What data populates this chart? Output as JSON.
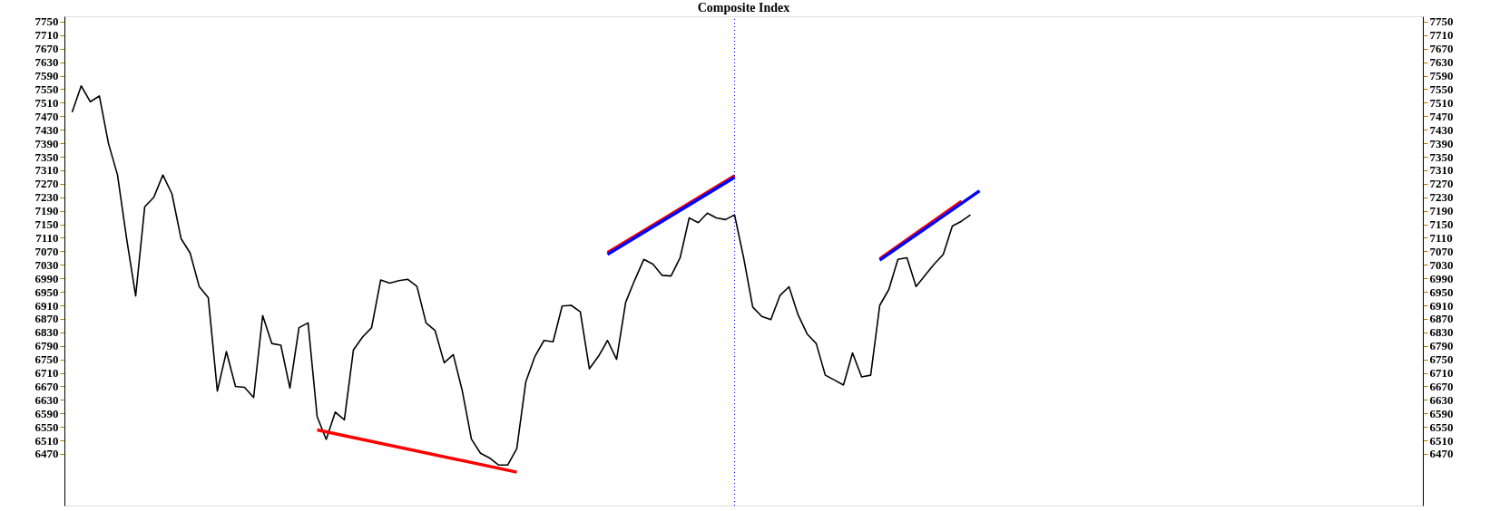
{
  "chart_data": {
    "type": "line",
    "title": "Composite Index",
    "categories": [
      null,
      null,
      null,
      null,
      null,
      null,
      null,
      null,
      null,
      null,
      null,
      null,
      null,
      null,
      null,
      null,
      null,
      null,
      null,
      null,
      null,
      null,
      null,
      null,
      null,
      null,
      null,
      null,
      null,
      null,
      null,
      null,
      null,
      null,
      null,
      null,
      null,
      null,
      null,
      null,
      null,
      null,
      null,
      null,
      null,
      null,
      null,
      null,
      null,
      null,
      null,
      null,
      null,
      null,
      null,
      null,
      null,
      null,
      null,
      null,
      null,
      null,
      null,
      null,
      null,
      null,
      null,
      null,
      null,
      null,
      null,
      null,
      null,
      null,
      null,
      null,
      null,
      null,
      null,
      null,
      null,
      null,
      null,
      null,
      null,
      null,
      null,
      null,
      null,
      null,
      null,
      null,
      null,
      null,
      null,
      null,
      null,
      null,
      null,
      null,
      null,
      null,
      null,
      null,
      null,
      null,
      null,
      null,
      null,
      null,
      null,
      null,
      null,
      null,
      null,
      null,
      null,
      null,
      null,
      null,
      null,
      null,
      null,
      null,
      null,
      null,
      null,
      null,
      null,
      null,
      null,
      null,
      null,
      null,
      null,
      null,
      null,
      null,
      null,
      null,
      null,
      null,
      null,
      null,
      null,
      null,
      null,
      null,
      null
    ],
    "series": [
      {
        "color": "#000000",
        "values": [
          7482,
          7560,
          7513,
          7530,
          7390,
          7296,
          7108,
          6938,
          7202,
          7230,
          7296,
          7240,
          7108,
          7065,
          6966,
          6933,
          6656,
          6773,
          6670,
          6667,
          6637,
          6880,
          6797,
          6792,
          6665,
          6844,
          6858,
          6580,
          6513,
          6594,
          6571,
          6778,
          6816,
          6844,
          6985,
          6976,
          6983,
          6987,
          6966,
          6858,
          6835,
          6740,
          6764,
          6656,
          6514,
          6472,
          6458,
          6437,
          6437,
          6486,
          6684,
          6759,
          6806,
          6802,
          6908,
          6910,
          6891,
          6722,
          6759,
          6806,
          6750,
          6919,
          6985,
          7046,
          7032,
          6999,
          6997,
          7051,
          7169,
          7155,
          7183,
          7169,
          7164,
          7178,
          7051,
          6905,
          6877,
          6868,
          6939,
          6965,
          6882,
          6825,
          6797,
          6703,
          6689,
          6674,
          6769,
          6698,
          6703,
          6910,
          6957,
          7046,
          7051,
          6966,
          6999,
          7032,
          7061,
          7145,
          7159,
          7178,
          null,
          null,
          null,
          null,
          null,
          null,
          null,
          null,
          null,
          null,
          null,
          null,
          null,
          null,
          null,
          null,
          null,
          null,
          null,
          null,
          null,
          null,
          null,
          null,
          null,
          null,
          null,
          null,
          null,
          null,
          null,
          null,
          null,
          null,
          null,
          null,
          null,
          null,
          null,
          null,
          null,
          null,
          null,
          null,
          null,
          null,
          null,
          null,
          null
        ]
      },
      {
        "color": "#ff0000",
        "values": [
          null,
          null,
          null,
          null,
          null,
          null,
          null,
          null,
          null,
          null,
          null,
          null,
          null,
          null,
          null,
          null,
          null,
          null,
          null,
          null,
          null,
          null,
          null,
          null,
          null,
          null,
          null,
          6541,
          null,
          null,
          null,
          null,
          null,
          null,
          null,
          null,
          null,
          null,
          null,
          null,
          null,
          null,
          null,
          null,
          null,
          null,
          null,
          null,
          null,
          6416,
          null,
          null,
          null,
          null,
          null,
          null,
          null,
          null,
          null,
          null,
          null,
          null,
          null,
          null,
          null,
          null,
          null,
          null,
          null,
          null,
          null,
          null,
          null,
          null,
          null,
          null,
          null,
          null,
          null,
          null,
          null,
          null,
          null,
          null,
          null,
          null,
          null,
          null,
          null,
          null,
          null,
          null,
          null,
          null,
          null,
          null,
          null,
          null,
          null,
          null,
          null,
          null,
          null,
          null,
          null,
          null,
          null,
          null,
          null,
          null,
          null,
          null,
          null,
          null,
          null,
          null,
          null,
          null,
          null,
          null,
          null,
          null,
          null,
          null,
          null,
          null,
          null,
          null,
          null,
          null,
          null,
          null,
          null,
          null,
          null,
          null,
          null,
          null,
          null,
          null,
          null,
          null,
          null,
          null,
          null,
          null,
          null,
          null,
          null
        ]
      },
      {
        "color": "#ff0000",
        "values": [
          null,
          null,
          null,
          null,
          null,
          null,
          null,
          null,
          null,
          null,
          null,
          null,
          null,
          null,
          null,
          null,
          null,
          null,
          null,
          null,
          null,
          null,
          null,
          null,
          null,
          null,
          null,
          null,
          null,
          null,
          null,
          null,
          null,
          null,
          null,
          null,
          null,
          null,
          null,
          null,
          null,
          null,
          null,
          null,
          null,
          null,
          null,
          null,
          null,
          null,
          null,
          null,
          null,
          null,
          null,
          null,
          null,
          null,
          null,
          7066,
          null,
          null,
          null,
          null,
          null,
          null,
          null,
          null,
          null,
          null,
          null,
          null,
          null,
          7294,
          null,
          null,
          null,
          null,
          null,
          null,
          null,
          null,
          null,
          null,
          null,
          null,
          null,
          null,
          null,
          null,
          null,
          null,
          null,
          null,
          null,
          null,
          null,
          null,
          null,
          null,
          null,
          null,
          null,
          null,
          null,
          null,
          null,
          null,
          null,
          null,
          null,
          null,
          null,
          null,
          null,
          null,
          null,
          null,
          null,
          null,
          null,
          null,
          null,
          null,
          null,
          null,
          null,
          null,
          null,
          null,
          null,
          null,
          null,
          null,
          null,
          null,
          null,
          null,
          null,
          null,
          null,
          null,
          null,
          null,
          null,
          null,
          null,
          null,
          null
        ]
      },
      {
        "color": "#0000ff",
        "values": [
          null,
          null,
          null,
          null,
          null,
          null,
          null,
          null,
          null,
          null,
          null,
          null,
          null,
          null,
          null,
          null,
          null,
          null,
          null,
          null,
          null,
          null,
          null,
          null,
          null,
          null,
          null,
          null,
          null,
          null,
          null,
          null,
          null,
          null,
          null,
          null,
          null,
          null,
          null,
          null,
          null,
          null,
          null,
          null,
          null,
          null,
          null,
          null,
          null,
          null,
          null,
          null,
          null,
          null,
          null,
          null,
          null,
          null,
          null,
          7061,
          null,
          null,
          null,
          null,
          null,
          null,
          null,
          null,
          null,
          null,
          null,
          null,
          null,
          7289,
          null,
          null,
          null,
          null,
          null,
          null,
          null,
          null,
          null,
          null,
          null,
          null,
          null,
          null,
          null,
          null,
          null,
          null,
          null,
          null,
          null,
          null,
          null,
          null,
          null,
          null,
          null,
          null,
          null,
          null,
          null,
          null,
          null,
          null,
          null,
          null,
          null,
          null,
          null,
          null,
          null,
          null,
          null,
          null,
          null,
          null,
          null,
          null,
          null,
          null,
          null,
          null,
          null,
          null,
          null,
          null,
          null,
          null,
          null,
          null,
          null,
          null,
          null,
          null,
          null,
          null,
          null,
          null,
          null,
          null,
          null,
          null,
          null,
          null,
          null
        ]
      },
      {
        "color": "#ff0000",
        "values": [
          null,
          null,
          null,
          null,
          null,
          null,
          null,
          null,
          null,
          null,
          null,
          null,
          null,
          null,
          null,
          null,
          null,
          null,
          null,
          null,
          null,
          null,
          null,
          null,
          null,
          null,
          null,
          null,
          null,
          null,
          null,
          null,
          null,
          null,
          null,
          null,
          null,
          null,
          null,
          null,
          null,
          null,
          null,
          null,
          null,
          null,
          null,
          null,
          null,
          null,
          null,
          null,
          null,
          null,
          null,
          null,
          null,
          null,
          null,
          null,
          null,
          null,
          null,
          null,
          null,
          null,
          null,
          null,
          null,
          null,
          null,
          null,
          null,
          null,
          null,
          null,
          null,
          null,
          null,
          null,
          null,
          null,
          null,
          null,
          null,
          null,
          null,
          null,
          null,
          7048,
          null,
          null,
          null,
          null,
          null,
          null,
          null,
          null,
          7218,
          null,
          null,
          null,
          null,
          null,
          null,
          null,
          null,
          null,
          null,
          null,
          null,
          null,
          null,
          null,
          null,
          null,
          null,
          null,
          null,
          null,
          null,
          null,
          null,
          null,
          null,
          null,
          null,
          null,
          null,
          null,
          null,
          null,
          null,
          null,
          null,
          null,
          null,
          null,
          null,
          null,
          null,
          null,
          null,
          null,
          null,
          null,
          null,
          null,
          null
        ]
      },
      {
        "color": "#0000ff",
        "values": [
          null,
          null,
          null,
          null,
          null,
          null,
          null,
          null,
          null,
          null,
          null,
          null,
          null,
          null,
          null,
          null,
          null,
          null,
          null,
          null,
          null,
          null,
          null,
          null,
          null,
          null,
          null,
          null,
          null,
          null,
          null,
          null,
          null,
          null,
          null,
          null,
          null,
          null,
          null,
          null,
          null,
          null,
          null,
          null,
          null,
          null,
          null,
          null,
          null,
          null,
          null,
          null,
          null,
          null,
          null,
          null,
          null,
          null,
          null,
          null,
          null,
          null,
          null,
          null,
          null,
          null,
          null,
          null,
          null,
          null,
          null,
          null,
          null,
          null,
          null,
          null,
          null,
          null,
          null,
          null,
          null,
          null,
          null,
          null,
          null,
          null,
          null,
          null,
          null,
          7044,
          null,
          null,
          null,
          null,
          null,
          null,
          null,
          null,
          null,
          null,
          7249,
          null,
          null,
          null,
          null,
          null,
          null,
          null,
          null,
          null,
          null,
          null,
          null,
          null,
          null,
          null,
          null,
          null,
          null,
          null,
          null,
          null,
          null,
          null,
          null,
          null,
          null,
          null,
          null,
          null,
          null,
          null,
          null,
          null,
          null,
          null,
          null,
          null,
          null,
          null,
          null,
          null,
          null,
          null,
          null,
          null,
          null,
          null,
          null
        ]
      }
    ],
    "ylim": [
      6317,
      7766
    ],
    "yticks": [
      6470,
      6510,
      6550,
      6590,
      6630,
      6670,
      6710,
      6750,
      6790,
      6830,
      6870,
      6910,
      6950,
      6990,
      7030,
      7070,
      7110,
      7150,
      7190,
      7230,
      7270,
      7310,
      7350,
      7390,
      7430,
      7470,
      7510,
      7550,
      7590,
      7630,
      7670,
      7710,
      7750
    ],
    "y2lim": [
      6317,
      7766
    ],
    "y2ticks": [
      6470,
      6510,
      6550,
      6590,
      6630,
      6670,
      6710,
      6750,
      6790,
      6830,
      6870,
      6910,
      6950,
      6990,
      7030,
      7070,
      7110,
      7150,
      7190,
      7230,
      7270,
      7310,
      7350,
      7390,
      7430,
      7470,
      7510,
      7550,
      7590,
      7630,
      7670,
      7710,
      7750
    ],
    "tick_labels": "y"
  }
}
